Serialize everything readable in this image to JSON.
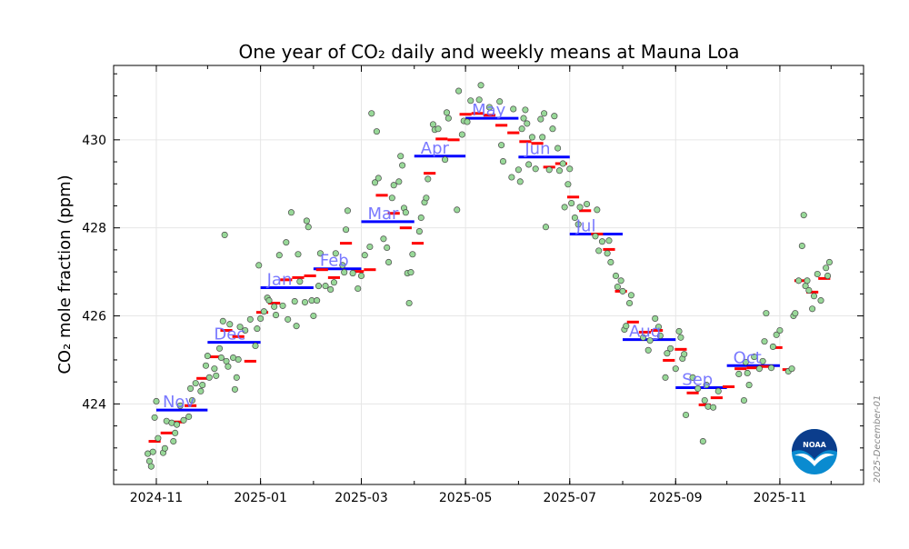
{
  "chart_data": {
    "type": "scatter",
    "title": "One year of CO₂ daily and weekly means at Mauna Loa",
    "ylabel": "CO₂ mole fraction (ppm)",
    "xlabel": "",
    "ylim": [
      422.17,
      431.69
    ],
    "xlim": [
      "2024-10-07",
      "2025-12-20"
    ],
    "grid": true,
    "x_ticks": [
      "2024-11",
      "2025-01",
      "2025-03",
      "2025-05",
      "2025-07",
      "2025-09",
      "2025-11"
    ],
    "y_ticks": [
      424,
      426,
      428,
      430
    ],
    "date_stamp": "2025-December-01",
    "logo_text": "NOAA",
    "colors": {
      "daily_fill": "#98d898",
      "daily_edge": "#4a4a4a",
      "weekly": "#ff0000",
      "monthly": "#0000ff",
      "month_label": "#6b6bff",
      "grid": "#e6e6e6"
    },
    "monthly_means": [
      {
        "month": "2024-11",
        "label": "Nov",
        "value": 423.86
      },
      {
        "month": "2024-12",
        "label": "Dec",
        "value": 425.4
      },
      {
        "month": "2025-01",
        "label": "Jan",
        "value": 426.64
      },
      {
        "month": "2025-02",
        "label": "Feb",
        "value": 427.07
      },
      {
        "month": "2025-03",
        "label": "Mar",
        "value": 428.14
      },
      {
        "month": "2025-04",
        "label": "Apr",
        "value": 429.63
      },
      {
        "month": "2025-05",
        "label": "May",
        "value": 430.49
      },
      {
        "month": "2025-06",
        "label": "Jun",
        "value": 429.61
      },
      {
        "month": "2025-07",
        "label": "Jul",
        "value": 427.86
      },
      {
        "month": "2025-08",
        "label": "Aug",
        "value": 425.46
      },
      {
        "month": "2025-09",
        "label": "Sep",
        "value": 424.37
      },
      {
        "month": "2025-10",
        "label": "Oct",
        "value": 424.87
      }
    ],
    "weekly_means": [
      [
        "2024-10-31",
        423.15
      ],
      [
        "2024-11-07",
        423.34
      ],
      [
        "2024-11-14",
        423.59
      ],
      [
        "2024-11-21",
        423.96
      ],
      [
        "2024-11-28",
        424.58
      ],
      [
        "2024-12-05",
        425.07
      ],
      [
        "2024-12-12",
        425.67
      ],
      [
        "2024-12-19",
        425.53
      ],
      [
        "2024-12-26",
        424.97
      ],
      [
        "2025-01-02",
        426.08
      ],
      [
        "2025-01-09",
        426.29
      ],
      [
        "2025-01-16",
        426.82
      ],
      [
        "2025-01-23",
        426.87
      ],
      [
        "2025-01-30",
        426.91
      ],
      [
        "2025-02-06",
        427.05
      ],
      [
        "2025-02-13",
        426.87
      ],
      [
        "2025-02-20",
        427.65
      ],
      [
        "2025-02-27",
        427.01
      ],
      [
        "2025-03-06",
        427.05
      ],
      [
        "2025-03-13",
        428.74
      ],
      [
        "2025-03-20",
        428.33
      ],
      [
        "2025-03-27",
        428.0
      ],
      [
        "2025-04-03",
        427.65
      ],
      [
        "2025-04-10",
        429.24
      ],
      [
        "2025-04-17",
        430.02
      ],
      [
        "2025-04-24",
        430.0
      ],
      [
        "2025-05-01",
        430.58
      ],
      [
        "2025-05-08",
        430.6
      ],
      [
        "2025-05-15",
        430.56
      ],
      [
        "2025-05-22",
        430.33
      ],
      [
        "2025-05-29",
        430.16
      ],
      [
        "2025-06-05",
        429.96
      ],
      [
        "2025-06-12",
        429.92
      ],
      [
        "2025-06-19",
        429.38
      ],
      [
        "2025-06-26",
        429.46
      ],
      [
        "2025-07-03",
        428.7
      ],
      [
        "2025-07-10",
        428.39
      ],
      [
        "2025-07-17",
        427.86
      ],
      [
        "2025-07-24",
        427.51
      ],
      [
        "2025-07-31",
        426.56
      ],
      [
        "2025-08-07",
        425.86
      ],
      [
        "2025-08-14",
        425.63
      ],
      [
        "2025-08-21",
        425.67
      ],
      [
        "2025-08-28",
        424.99
      ],
      [
        "2025-09-04",
        425.24
      ],
      [
        "2025-09-11",
        424.25
      ],
      [
        "2025-09-18",
        423.98
      ],
      [
        "2025-09-25",
        424.14
      ],
      [
        "2025-10-02",
        424.39
      ],
      [
        "2025-10-09",
        424.8
      ],
      [
        "2025-10-16",
        424.82
      ],
      [
        "2025-10-23",
        424.85
      ],
      [
        "2025-10-30",
        425.28
      ],
      [
        "2025-11-06",
        424.78
      ],
      [
        "2025-11-13",
        426.8
      ],
      [
        "2025-11-20",
        426.54
      ],
      [
        "2025-11-27",
        426.85
      ]
    ],
    "daily_means": [
      [
        "2024-10-27",
        422.87
      ],
      [
        "2024-10-28",
        422.7
      ],
      [
        "2024-10-29",
        422.58
      ],
      [
        "2024-10-30",
        422.91
      ],
      [
        "2024-10-31",
        423.69
      ],
      [
        "2024-11-01",
        424.06
      ],
      [
        "2024-11-02",
        423.22
      ],
      [
        "2024-11-05",
        422.89
      ],
      [
        "2024-11-06",
        422.99
      ],
      [
        "2024-11-07",
        423.61
      ],
      [
        "2024-11-10",
        423.57
      ],
      [
        "2024-11-11",
        423.15
      ],
      [
        "2024-11-12",
        423.34
      ],
      [
        "2024-11-13",
        423.53
      ],
      [
        "2024-11-15",
        423.96
      ],
      [
        "2024-11-17",
        423.63
      ],
      [
        "2024-11-20",
        423.71
      ],
      [
        "2024-11-21",
        424.35
      ],
      [
        "2024-11-22",
        424.08
      ],
      [
        "2024-11-24",
        424.47
      ],
      [
        "2024-11-27",
        424.29
      ],
      [
        "2024-11-28",
        424.43
      ],
      [
        "2024-11-30",
        424.87
      ],
      [
        "2024-12-01",
        425.09
      ],
      [
        "2024-12-02",
        424.6
      ],
      [
        "2024-12-05",
        424.8
      ],
      [
        "2024-12-06",
        424.64
      ],
      [
        "2024-12-08",
        425.26
      ],
      [
        "2024-12-09",
        425.05
      ],
      [
        "2024-12-10",
        425.88
      ],
      [
        "2024-12-11",
        427.84
      ],
      [
        "2024-12-12",
        424.97
      ],
      [
        "2024-12-13",
        424.85
      ],
      [
        "2024-12-14",
        425.81
      ],
      [
        "2024-12-16",
        425.05
      ],
      [
        "2024-12-17",
        424.33
      ],
      [
        "2024-12-18",
        424.6
      ],
      [
        "2024-12-19",
        425.01
      ],
      [
        "2024-12-20",
        425.75
      ],
      [
        "2024-12-23",
        425.67
      ],
      [
        "2024-12-26",
        425.92
      ],
      [
        "2024-12-29",
        425.32
      ],
      [
        "2024-12-30",
        425.71
      ],
      [
        "2024-12-31",
        427.15
      ],
      [
        "2025-01-01",
        425.94
      ],
      [
        "2025-01-03",
        426.1
      ],
      [
        "2025-01-05",
        426.41
      ],
      [
        "2025-01-06",
        426.35
      ],
      [
        "2025-01-09",
        426.21
      ],
      [
        "2025-01-10",
        426.02
      ],
      [
        "2025-01-12",
        427.38
      ],
      [
        "2025-01-14",
        426.23
      ],
      [
        "2025-01-16",
        427.67
      ],
      [
        "2025-01-17",
        425.92
      ],
      [
        "2025-01-19",
        428.35
      ],
      [
        "2025-01-21",
        426.33
      ],
      [
        "2025-01-22",
        425.77
      ],
      [
        "2025-01-23",
        427.4
      ],
      [
        "2025-01-24",
        426.78
      ],
      [
        "2025-01-27",
        426.31
      ],
      [
        "2025-01-28",
        428.16
      ],
      [
        "2025-01-29",
        428.02
      ],
      [
        "2025-01-31",
        426.35
      ],
      [
        "2025-02-01",
        426.0
      ],
      [
        "2025-02-03",
        426.35
      ],
      [
        "2025-02-04",
        426.68
      ],
      [
        "2025-02-05",
        427.42
      ],
      [
        "2025-02-08",
        426.68
      ],
      [
        "2025-02-11",
        426.6
      ],
      [
        "2025-02-13",
        426.76
      ],
      [
        "2025-02-14",
        427.42
      ],
      [
        "2025-02-18",
        427.15
      ],
      [
        "2025-02-19",
        426.99
      ],
      [
        "2025-02-20",
        427.96
      ],
      [
        "2025-02-21",
        428.39
      ],
      [
        "2025-02-24",
        426.97
      ],
      [
        "2025-02-27",
        426.62
      ],
      [
        "2025-03-01",
        426.91
      ],
      [
        "2025-03-03",
        427.38
      ],
      [
        "2025-03-06",
        427.57
      ],
      [
        "2025-03-07",
        430.6
      ],
      [
        "2025-03-09",
        429.03
      ],
      [
        "2025-03-10",
        430.19
      ],
      [
        "2025-03-11",
        429.13
      ],
      [
        "2025-03-14",
        427.75
      ],
      [
        "2025-03-16",
        427.55
      ],
      [
        "2025-03-17",
        427.22
      ],
      [
        "2025-03-19",
        428.68
      ],
      [
        "2025-03-20",
        428.97
      ],
      [
        "2025-03-23",
        429.05
      ],
      [
        "2025-03-24",
        429.63
      ],
      [
        "2025-03-25",
        429.42
      ],
      [
        "2025-03-26",
        428.45
      ],
      [
        "2025-03-27",
        428.35
      ],
      [
        "2025-03-28",
        426.97
      ],
      [
        "2025-03-29",
        426.29
      ],
      [
        "2025-03-30",
        426.99
      ],
      [
        "2025-03-31",
        427.4
      ],
      [
        "2025-04-04",
        427.92
      ],
      [
        "2025-04-05",
        428.23
      ],
      [
        "2025-04-07",
        428.58
      ],
      [
        "2025-04-08",
        428.68
      ],
      [
        "2025-04-09",
        429.11
      ],
      [
        "2025-04-12",
        430.35
      ],
      [
        "2025-04-13",
        430.23
      ],
      [
        "2025-04-15",
        430.25
      ],
      [
        "2025-04-19",
        429.55
      ],
      [
        "2025-04-20",
        430.62
      ],
      [
        "2025-04-21",
        430.49
      ],
      [
        "2025-04-26",
        428.41
      ],
      [
        "2025-04-27",
        431.11
      ],
      [
        "2025-04-29",
        430.12
      ],
      [
        "2025-04-30",
        430.43
      ],
      [
        "2025-05-02",
        430.41
      ],
      [
        "2025-05-04",
        430.89
      ],
      [
        "2025-05-09",
        430.91
      ],
      [
        "2025-05-10",
        431.24
      ],
      [
        "2025-05-15",
        430.74
      ],
      [
        "2025-05-21",
        430.87
      ],
      [
        "2025-05-22",
        429.88
      ],
      [
        "2025-05-23",
        429.51
      ],
      [
        "2025-05-28",
        429.15
      ],
      [
        "2025-05-29",
        430.7
      ],
      [
        "2025-06-01",
        429.32
      ],
      [
        "2025-06-02",
        429.05
      ],
      [
        "2025-06-03",
        430.25
      ],
      [
        "2025-06-04",
        430.49
      ],
      [
        "2025-06-05",
        430.68
      ],
      [
        "2025-06-06",
        430.37
      ],
      [
        "2025-06-07",
        429.44
      ],
      [
        "2025-06-09",
        430.06
      ],
      [
        "2025-06-11",
        429.34
      ],
      [
        "2025-06-14",
        430.47
      ],
      [
        "2025-06-15",
        430.06
      ],
      [
        "2025-06-16",
        430.6
      ],
      [
        "2025-06-17",
        428.02
      ],
      [
        "2025-06-19",
        429.32
      ],
      [
        "2025-06-21",
        430.25
      ],
      [
        "2025-06-22",
        430.54
      ],
      [
        "2025-06-24",
        429.81
      ],
      [
        "2025-06-25",
        429.3
      ],
      [
        "2025-06-27",
        429.46
      ],
      [
        "2025-06-28",
        428.47
      ],
      [
        "2025-06-30",
        428.99
      ],
      [
        "2025-07-01",
        429.34
      ],
      [
        "2025-07-02",
        428.56
      ],
      [
        "2025-07-04",
        428.23
      ],
      [
        "2025-07-06",
        428.08
      ],
      [
        "2025-07-07",
        428.47
      ],
      [
        "2025-07-11",
        428.54
      ],
      [
        "2025-07-16",
        427.81
      ],
      [
        "2025-07-17",
        428.41
      ],
      [
        "2025-07-18",
        427.48
      ],
      [
        "2025-07-20",
        427.69
      ],
      [
        "2025-07-23",
        427.42
      ],
      [
        "2025-07-24",
        427.71
      ],
      [
        "2025-07-25",
        427.22
      ],
      [
        "2025-07-28",
        426.91
      ],
      [
        "2025-07-29",
        426.66
      ],
      [
        "2025-07-31",
        426.8
      ],
      [
        "2025-08-01",
        426.56
      ],
      [
        "2025-08-02",
        425.69
      ],
      [
        "2025-08-03",
        425.77
      ],
      [
        "2025-08-05",
        426.29
      ],
      [
        "2025-08-06",
        426.47
      ],
      [
        "2025-08-13",
        425.51
      ],
      [
        "2025-08-16",
        425.22
      ],
      [
        "2025-08-17",
        425.44
      ],
      [
        "2025-08-20",
        425.94
      ],
      [
        "2025-08-22",
        425.75
      ],
      [
        "2025-08-23",
        425.55
      ],
      [
        "2025-08-26",
        424.6
      ],
      [
        "2025-08-27",
        425.15
      ],
      [
        "2025-08-29",
        425.26
      ],
      [
        "2025-09-01",
        424.8
      ],
      [
        "2025-09-03",
        425.65
      ],
      [
        "2025-09-04",
        425.51
      ],
      [
        "2025-09-05",
        425.03
      ],
      [
        "2025-09-06",
        425.13
      ],
      [
        "2025-09-07",
        423.75
      ],
      [
        "2025-09-11",
        424.6
      ],
      [
        "2025-09-14",
        424.35
      ],
      [
        "2025-09-17",
        423.15
      ],
      [
        "2025-09-18",
        424.08
      ],
      [
        "2025-09-19",
        424.43
      ],
      [
        "2025-09-20",
        423.94
      ],
      [
        "2025-09-23",
        423.92
      ],
      [
        "2025-09-26",
        424.29
      ],
      [
        "2025-10-08",
        424.68
      ],
      [
        "2025-10-11",
        424.08
      ],
      [
        "2025-10-12",
        424.95
      ],
      [
        "2025-10-13",
        424.7
      ],
      [
        "2025-10-14",
        424.43
      ],
      [
        "2025-10-17",
        425.07
      ],
      [
        "2025-10-20",
        424.8
      ],
      [
        "2025-10-22",
        424.97
      ],
      [
        "2025-10-23",
        425.42
      ],
      [
        "2025-10-24",
        426.06
      ],
      [
        "2025-10-27",
        424.82
      ],
      [
        "2025-10-28",
        425.3
      ],
      [
        "2025-10-30",
        425.57
      ],
      [
        "2025-11-01",
        425.67
      ],
      [
        "2025-11-06",
        424.74
      ],
      [
        "2025-11-08",
        424.8
      ],
      [
        "2025-11-09",
        426.0
      ],
      [
        "2025-11-10",
        426.06
      ],
      [
        "2025-11-12",
        426.8
      ],
      [
        "2025-11-14",
        427.59
      ],
      [
        "2025-11-15",
        428.29
      ],
      [
        "2025-11-16",
        426.68
      ],
      [
        "2025-11-17",
        426.8
      ],
      [
        "2025-11-18",
        426.58
      ],
      [
        "2025-11-20",
        426.16
      ],
      [
        "2025-11-21",
        426.45
      ],
      [
        "2025-11-23",
        426.95
      ],
      [
        "2025-11-25",
        426.35
      ],
      [
        "2025-11-28",
        427.09
      ],
      [
        "2025-11-29",
        426.91
      ],
      [
        "2025-11-30",
        427.22
      ]
    ]
  }
}
